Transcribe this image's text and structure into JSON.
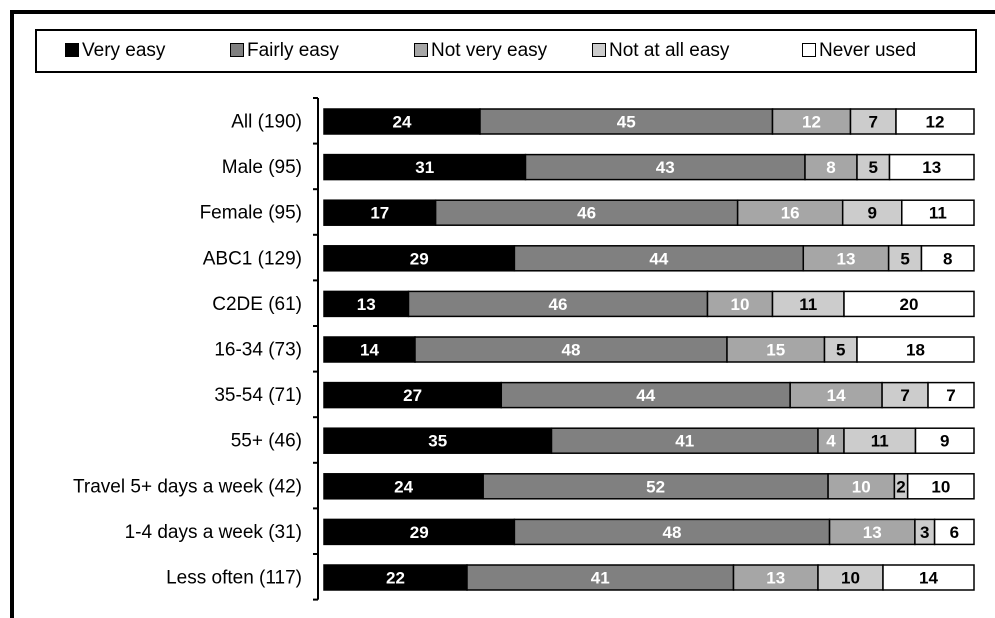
{
  "chart_data": {
    "type": "bar",
    "orientation": "horizontal",
    "stacked": true,
    "percent_stacked": true,
    "categories": [
      "All (190)",
      "Male (95)",
      "Female (95)",
      "ABC1 (129)",
      "C2DE (61)",
      "16-34 (73)",
      "35-54 (71)",
      "55+ (46)",
      "Travel 5+ days a week (42)",
      "1-4 days a week (31)",
      "Less often (117)"
    ],
    "series": [
      {
        "name": "Very easy",
        "color": "#000000",
        "label_color": "#ffffff",
        "values": [
          24,
          31,
          17,
          29,
          13,
          14,
          27,
          35,
          24,
          29,
          22
        ]
      },
      {
        "name": "Fairly easy",
        "color": "#808080",
        "label_color": "#ffffff",
        "values": [
          45,
          43,
          46,
          44,
          46,
          48,
          44,
          41,
          52,
          48,
          41
        ]
      },
      {
        "name": "Not very easy",
        "color": "#a6a6a6",
        "label_color": "#ffffff",
        "values": [
          12,
          8,
          16,
          13,
          10,
          15,
          14,
          4,
          10,
          13,
          13
        ]
      },
      {
        "name": "Not at all easy",
        "color": "#cccccc",
        "label_color": "#000000",
        "values": [
          7,
          5,
          9,
          5,
          11,
          5,
          7,
          11,
          2,
          3,
          10
        ]
      },
      {
        "name": "Never used",
        "color": "#ffffff",
        "label_color": "#000000",
        "values": [
          12,
          13,
          11,
          8,
          20,
          18,
          7,
          9,
          10,
          6,
          14
        ]
      }
    ],
    "legend_position": "top",
    "grid": false
  }
}
